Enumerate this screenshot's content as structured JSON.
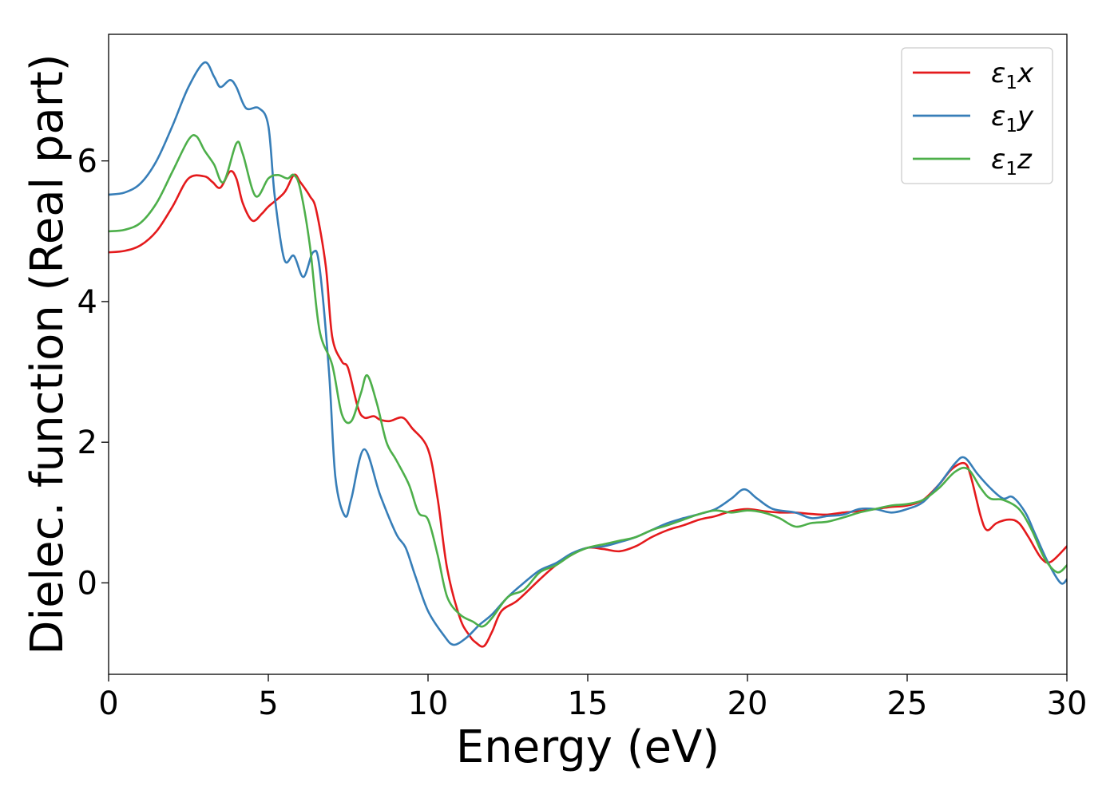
{
  "chart_data": {
    "type": "line",
    "xlabel": "Energy (eV)",
    "ylabel": "Dielec. function (Real part)",
    "xlim": [
      0,
      30
    ],
    "ylim": [
      -1.3,
      7.8
    ],
    "x_ticks": [
      "0",
      "5",
      "10",
      "15",
      "20",
      "25",
      "30"
    ],
    "y_ticks": [
      "0",
      "2",
      "4",
      "6"
    ],
    "grid": false,
    "legend_position": "top-right",
    "series": [
      {
        "name": "ε1x",
        "legend_symbol": "ε",
        "legend_subscript": "1",
        "legend_suffix": "x",
        "color": "#e41a1c",
        "points": [
          [
            0,
            4.7
          ],
          [
            0.5,
            4.72
          ],
          [
            1,
            4.8
          ],
          [
            1.5,
            5.0
          ],
          [
            2,
            5.35
          ],
          [
            2.5,
            5.75
          ],
          [
            3,
            5.78
          ],
          [
            3.25,
            5.7
          ],
          [
            3.5,
            5.62
          ],
          [
            3.8,
            5.85
          ],
          [
            4,
            5.75
          ],
          [
            4.2,
            5.4
          ],
          [
            4.5,
            5.15
          ],
          [
            4.8,
            5.25
          ],
          [
            5,
            5.35
          ],
          [
            5.5,
            5.55
          ],
          [
            5.8,
            5.8
          ],
          [
            6,
            5.7
          ],
          [
            6.3,
            5.5
          ],
          [
            6.5,
            5.3
          ],
          [
            6.8,
            4.5
          ],
          [
            7,
            3.5
          ],
          [
            7.3,
            3.15
          ],
          [
            7.5,
            3.05
          ],
          [
            7.8,
            2.5
          ],
          [
            8,
            2.35
          ],
          [
            8.3,
            2.37
          ],
          [
            8.5,
            2.32
          ],
          [
            8.8,
            2.3
          ],
          [
            9.2,
            2.35
          ],
          [
            9.5,
            2.2
          ],
          [
            10,
            1.9
          ],
          [
            10.3,
            1.2
          ],
          [
            10.6,
            0.2
          ],
          [
            11,
            -0.5
          ],
          [
            11.3,
            -0.75
          ],
          [
            11.5,
            -0.85
          ],
          [
            11.75,
            -0.9
          ],
          [
            12,
            -0.7
          ],
          [
            12.3,
            -0.4
          ],
          [
            12.8,
            -0.25
          ],
          [
            13.5,
            0.05
          ],
          [
            14,
            0.25
          ],
          [
            14.5,
            0.4
          ],
          [
            15,
            0.5
          ],
          [
            15.5,
            0.48
          ],
          [
            16,
            0.45
          ],
          [
            16.5,
            0.52
          ],
          [
            17,
            0.65
          ],
          [
            17.5,
            0.75
          ],
          [
            18,
            0.82
          ],
          [
            18.5,
            0.9
          ],
          [
            19,
            0.95
          ],
          [
            19.5,
            1.02
          ],
          [
            20,
            1.05
          ],
          [
            20.5,
            1.02
          ],
          [
            21,
            1.0
          ],
          [
            21.5,
            1.0
          ],
          [
            22,
            0.98
          ],
          [
            22.5,
            0.97
          ],
          [
            23,
            1.0
          ],
          [
            23.5,
            1.02
          ],
          [
            24,
            1.05
          ],
          [
            24.5,
            1.08
          ],
          [
            25,
            1.1
          ],
          [
            25.5,
            1.18
          ],
          [
            26,
            1.4
          ],
          [
            26.4,
            1.62
          ],
          [
            26.8,
            1.7
          ],
          [
            27,
            1.5
          ],
          [
            27.3,
            0.95
          ],
          [
            27.5,
            0.75
          ],
          [
            27.8,
            0.85
          ],
          [
            28.2,
            0.9
          ],
          [
            28.5,
            0.85
          ],
          [
            28.8,
            0.65
          ],
          [
            29.2,
            0.35
          ],
          [
            29.5,
            0.3
          ],
          [
            30,
            0.52
          ]
        ]
      },
      {
        "name": "ε1y",
        "legend_symbol": "ε",
        "legend_subscript": "1",
        "legend_suffix": "y",
        "color": "#377eb8",
        "points": [
          [
            0,
            5.52
          ],
          [
            0.5,
            5.55
          ],
          [
            1,
            5.68
          ],
          [
            1.5,
            6.0
          ],
          [
            2,
            6.5
          ],
          [
            2.5,
            7.05
          ],
          [
            3,
            7.4
          ],
          [
            3.3,
            7.2
          ],
          [
            3.5,
            7.05
          ],
          [
            3.8,
            7.15
          ],
          [
            4,
            7.05
          ],
          [
            4.3,
            6.75
          ],
          [
            4.7,
            6.75
          ],
          [
            5,
            6.5
          ],
          [
            5.2,
            5.5
          ],
          [
            5.5,
            4.6
          ],
          [
            5.8,
            4.65
          ],
          [
            6.1,
            4.35
          ],
          [
            6.4,
            4.7
          ],
          [
            6.6,
            4.5
          ],
          [
            6.9,
            3.0
          ],
          [
            7.1,
            1.5
          ],
          [
            7.4,
            0.95
          ],
          [
            7.6,
            1.2
          ],
          [
            8,
            1.9
          ],
          [
            8.5,
            1.25
          ],
          [
            9,
            0.7
          ],
          [
            9.3,
            0.5
          ],
          [
            9.6,
            0.1
          ],
          [
            10,
            -0.4
          ],
          [
            10.5,
            -0.75
          ],
          [
            10.8,
            -0.88
          ],
          [
            11.2,
            -0.78
          ],
          [
            11.6,
            -0.6
          ],
          [
            12,
            -0.45
          ],
          [
            12.5,
            -0.2
          ],
          [
            13,
            0.0
          ],
          [
            13.5,
            0.18
          ],
          [
            14,
            0.28
          ],
          [
            14.5,
            0.42
          ],
          [
            15,
            0.5
          ],
          [
            15.5,
            0.52
          ],
          [
            16,
            0.58
          ],
          [
            16.5,
            0.65
          ],
          [
            17,
            0.75
          ],
          [
            17.5,
            0.85
          ],
          [
            18,
            0.92
          ],
          [
            18.5,
            0.98
          ],
          [
            19,
            1.05
          ],
          [
            19.5,
            1.2
          ],
          [
            19.9,
            1.33
          ],
          [
            20.3,
            1.2
          ],
          [
            20.8,
            1.05
          ],
          [
            21.5,
            1.0
          ],
          [
            22,
            0.92
          ],
          [
            22.5,
            0.95
          ],
          [
            23,
            0.97
          ],
          [
            23.5,
            1.05
          ],
          [
            24,
            1.05
          ],
          [
            24.5,
            1.0
          ],
          [
            25,
            1.05
          ],
          [
            25.5,
            1.15
          ],
          [
            26,
            1.4
          ],
          [
            26.5,
            1.7
          ],
          [
            26.8,
            1.78
          ],
          [
            27.2,
            1.55
          ],
          [
            27.6,
            1.35
          ],
          [
            28,
            1.2
          ],
          [
            28.3,
            1.22
          ],
          [
            28.7,
            1.0
          ],
          [
            29,
            0.7
          ],
          [
            29.4,
            0.3
          ],
          [
            29.8,
            0.0
          ],
          [
            30,
            0.05
          ]
        ]
      },
      {
        "name": "ε1z",
        "legend_symbol": "ε",
        "legend_subscript": "1",
        "legend_suffix": "z",
        "color": "#4daf4a",
        "points": [
          [
            0,
            5.0
          ],
          [
            0.5,
            5.02
          ],
          [
            1,
            5.12
          ],
          [
            1.5,
            5.4
          ],
          [
            2,
            5.85
          ],
          [
            2.5,
            6.3
          ],
          [
            2.75,
            6.35
          ],
          [
            3,
            6.15
          ],
          [
            3.3,
            5.95
          ],
          [
            3.6,
            5.7
          ],
          [
            4,
            6.25
          ],
          [
            4.2,
            6.1
          ],
          [
            4.6,
            5.5
          ],
          [
            5,
            5.75
          ],
          [
            5.3,
            5.8
          ],
          [
            5.6,
            5.75
          ],
          [
            5.8,
            5.8
          ],
          [
            6,
            5.6
          ],
          [
            6.3,
            4.8
          ],
          [
            6.6,
            3.6
          ],
          [
            7,
            3.1
          ],
          [
            7.3,
            2.4
          ],
          [
            7.6,
            2.3
          ],
          [
            7.9,
            2.7
          ],
          [
            8.1,
            2.95
          ],
          [
            8.4,
            2.55
          ],
          [
            8.7,
            2.0
          ],
          [
            9,
            1.75
          ],
          [
            9.4,
            1.4
          ],
          [
            9.7,
            1.0
          ],
          [
            10,
            0.9
          ],
          [
            10.3,
            0.4
          ],
          [
            10.6,
            -0.2
          ],
          [
            11,
            -0.45
          ],
          [
            11.4,
            -0.55
          ],
          [
            11.7,
            -0.62
          ],
          [
            12,
            -0.5
          ],
          [
            12.5,
            -0.2
          ],
          [
            13,
            -0.1
          ],
          [
            13.5,
            0.15
          ],
          [
            14,
            0.25
          ],
          [
            14.5,
            0.4
          ],
          [
            15,
            0.5
          ],
          [
            15.5,
            0.55
          ],
          [
            16,
            0.6
          ],
          [
            16.5,
            0.65
          ],
          [
            17,
            0.75
          ],
          [
            17.5,
            0.82
          ],
          [
            18,
            0.9
          ],
          [
            18.5,
            0.98
          ],
          [
            19,
            1.03
          ],
          [
            19.5,
            1.0
          ],
          [
            20,
            1.03
          ],
          [
            20.5,
            1.0
          ],
          [
            21,
            0.92
          ],
          [
            21.5,
            0.8
          ],
          [
            22,
            0.85
          ],
          [
            22.5,
            0.87
          ],
          [
            23,
            0.93
          ],
          [
            23.5,
            1.0
          ],
          [
            24,
            1.05
          ],
          [
            24.5,
            1.1
          ],
          [
            25,
            1.12
          ],
          [
            25.5,
            1.18
          ],
          [
            26,
            1.35
          ],
          [
            26.5,
            1.58
          ],
          [
            26.9,
            1.62
          ],
          [
            27.3,
            1.35
          ],
          [
            27.6,
            1.2
          ],
          [
            28,
            1.18
          ],
          [
            28.5,
            1.05
          ],
          [
            28.9,
            0.75
          ],
          [
            29.3,
            0.35
          ],
          [
            29.7,
            0.15
          ],
          [
            30,
            0.25
          ]
        ]
      }
    ]
  }
}
